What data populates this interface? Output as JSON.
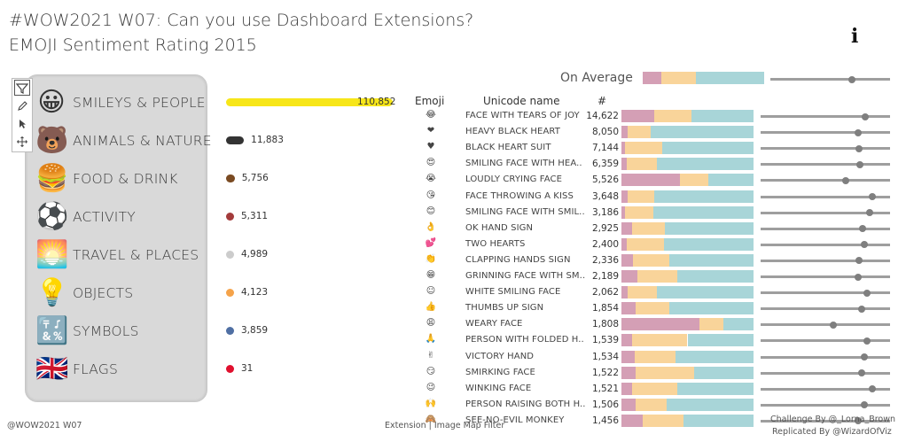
{
  "header": {
    "title_line1": "#WOW2021 W07: Can you use Dashboard Extensions?",
    "title_line2": "EMOJI Sentiment Rating 2015",
    "info_icon": "i"
  },
  "toolbar": {
    "icons": [
      "filter-icon",
      "pencil-icon",
      "pointer-icon",
      "move-icon"
    ]
  },
  "categories": [
    {
      "label": "SMILEYS & PEOPLE",
      "icon": "😀",
      "value": 110852,
      "value_label": "110,852",
      "color": "#f7e619"
    },
    {
      "label": "ANIMALS & NATURE",
      "icon": "🐻",
      "value": 11883,
      "value_label": "11,883",
      "color": "#333333"
    },
    {
      "label": "FOOD & DRINK",
      "icon": "🍔",
      "value": 5756,
      "value_label": "5,756",
      "color": "#7a4a22"
    },
    {
      "label": "ACTIVITY",
      "icon": "⚽",
      "value": 5311,
      "value_label": "5,311",
      "color": "#a33b3b"
    },
    {
      "label": "TRAVEL & PLACES",
      "icon": "🌅",
      "value": 4989,
      "value_label": "4,989",
      "color": "#cccccc"
    },
    {
      "label": "OBJECTS",
      "icon": "💡",
      "value": 4123,
      "value_label": "4,123",
      "color": "#f5a34a"
    },
    {
      "label": "SYMBOLS",
      "icon": "🔣",
      "value": 3859,
      "value_label": "3,859",
      "color": "#4f6fa3"
    },
    {
      "label": "FLAGS",
      "icon": "🇬🇧",
      "value": 31,
      "value_label": "31",
      "color": "#e0102e"
    }
  ],
  "average": {
    "label": "On Average",
    "negative": 0.15,
    "neutral": 0.29,
    "positive": 0.56,
    "slider": 0.68
  },
  "colors": {
    "negative": "#d49fb5",
    "neutral": "#f9d49a",
    "positive": "#a8d5d8"
  },
  "table": {
    "headers": {
      "emoji": "Emoji",
      "name": "Unicode name",
      "count": "#"
    },
    "rows": [
      {
        "emoji": "😂",
        "name": "FACE WITH TEARS OF JOY",
        "count": "14,622",
        "neg": 0.25,
        "neu": 0.28,
        "pos": 0.47,
        "slider": 0.81
      },
      {
        "emoji": "❤",
        "name": "HEAVY BLACK HEART",
        "count": "8,050",
        "neg": 0.05,
        "neu": 0.17,
        "pos": 0.78,
        "slider": 0.75
      },
      {
        "emoji": "♥",
        "name": "BLACK HEART SUIT",
        "count": "7,144",
        "neg": 0.03,
        "neu": 0.28,
        "pos": 0.69,
        "slider": 0.76
      },
      {
        "emoji": "😍",
        "name": "SMILING FACE WITH HEA..",
        "count": "6,359",
        "neg": 0.04,
        "neu": 0.23,
        "pos": 0.73,
        "slider": 0.77
      },
      {
        "emoji": "😭",
        "name": "LOUDLY CRYING FACE",
        "count": "5,526",
        "neg": 0.44,
        "neu": 0.22,
        "pos": 0.34,
        "slider": 0.66
      },
      {
        "emoji": "😘",
        "name": "FACE THROWING A KISS",
        "count": "3,648",
        "neg": 0.05,
        "neu": 0.2,
        "pos": 0.75,
        "slider": 0.86
      },
      {
        "emoji": "😊",
        "name": "SMILING FACE WITH SMIL..",
        "count": "3,186",
        "neg": 0.03,
        "neu": 0.21,
        "pos": 0.76,
        "slider": 0.84
      },
      {
        "emoji": "👌",
        "name": "OK HAND SIGN",
        "count": "2,925",
        "neg": 0.08,
        "neu": 0.25,
        "pos": 0.67,
        "slider": 0.79
      },
      {
        "emoji": "💕",
        "name": "TWO HEARTS",
        "count": "2,400",
        "neg": 0.04,
        "neu": 0.28,
        "pos": 0.68,
        "slider": 0.8
      },
      {
        "emoji": "👏",
        "name": "CLAPPING HANDS SIGN",
        "count": "2,336",
        "neg": 0.09,
        "neu": 0.27,
        "pos": 0.64,
        "slider": 0.76
      },
      {
        "emoji": "😁",
        "name": "GRINNING FACE WITH SM..",
        "count": "2,189",
        "neg": 0.12,
        "neu": 0.3,
        "pos": 0.58,
        "slider": 0.75
      },
      {
        "emoji": "☺",
        "name": "WHITE SMILING FACE",
        "count": "2,062",
        "neg": 0.05,
        "neu": 0.22,
        "pos": 0.73,
        "slider": 0.82
      },
      {
        "emoji": "👍",
        "name": "THUMBS UP SIGN",
        "count": "1,854",
        "neg": 0.11,
        "neu": 0.25,
        "pos": 0.64,
        "slider": 0.78
      },
      {
        "emoji": "😩",
        "name": "WEARY FACE",
        "count": "1,808",
        "neg": 0.59,
        "neu": 0.18,
        "pos": 0.23,
        "slider": 0.56
      },
      {
        "emoji": "🙏",
        "name": "PERSON WITH FOLDED H..",
        "count": "1,539",
        "neg": 0.08,
        "neu": 0.42,
        "pos": 0.5,
        "slider": 0.82
      },
      {
        "emoji": "✌",
        "name": "VICTORY HAND",
        "count": "1,534",
        "neg": 0.1,
        "neu": 0.31,
        "pos": 0.59,
        "slider": 0.8
      },
      {
        "emoji": "😏",
        "name": "SMIRKING FACE",
        "count": "1,522",
        "neg": 0.11,
        "neu": 0.44,
        "pos": 0.45,
        "slider": 0.78
      },
      {
        "emoji": "😉",
        "name": "WINKING FACE",
        "count": "1,521",
        "neg": 0.08,
        "neu": 0.34,
        "pos": 0.58,
        "slider": 0.86
      },
      {
        "emoji": "🙌",
        "name": "PERSON RAISING BOTH H..",
        "count": "1,506",
        "neg": 0.11,
        "neu": 0.23,
        "pos": 0.66,
        "slider": 0.8
      },
      {
        "emoji": "🙈",
        "name": "SEE-NO-EVIL MONKEY",
        "count": "1,456",
        "neg": 0.16,
        "neu": 0.31,
        "pos": 0.53,
        "slider": 0.75
      }
    ]
  },
  "footer": {
    "left": "@WOW2021 W07",
    "center": "Extension  |  Image Map Filter",
    "right_line1": "Challenge By @_Lorna_Brown",
    "right_line2": "Replicated By @WizardOfViz"
  }
}
